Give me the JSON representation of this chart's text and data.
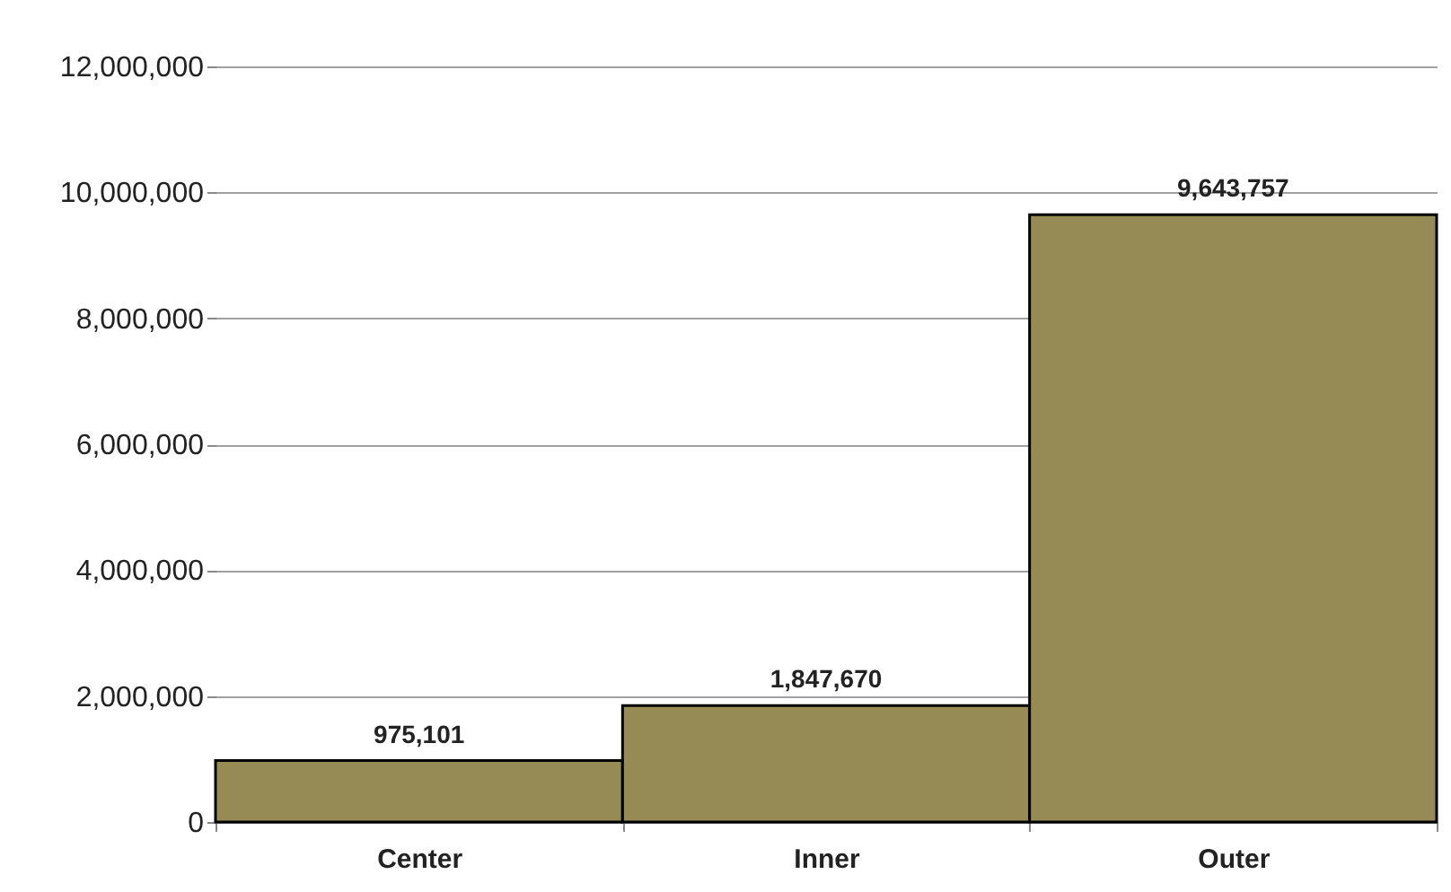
{
  "chart_data": {
    "type": "bar",
    "categories": [
      "Center",
      "Inner",
      "Outer"
    ],
    "values": [
      975101,
      1847670,
      9643757
    ],
    "value_labels": [
      "975,101",
      "1,847,670",
      "9,643,757"
    ],
    "color": "#978b55",
    "ylim": [
      0,
      12000000
    ],
    "yticks": [
      0,
      {
        "value": 2000000,
        "label": "2,000,000"
      },
      {
        "value": 4000000,
        "label": "4,000,000"
      },
      {
        "value": 6000000,
        "label": "6,000,000"
      },
      {
        "value": 8000000,
        "label": "8,000,000"
      },
      {
        "value": 10000000,
        "label": "10,000,000"
      },
      {
        "value": 12000000,
        "label": "12,000,000"
      }
    ],
    "grid": "y"
  }
}
